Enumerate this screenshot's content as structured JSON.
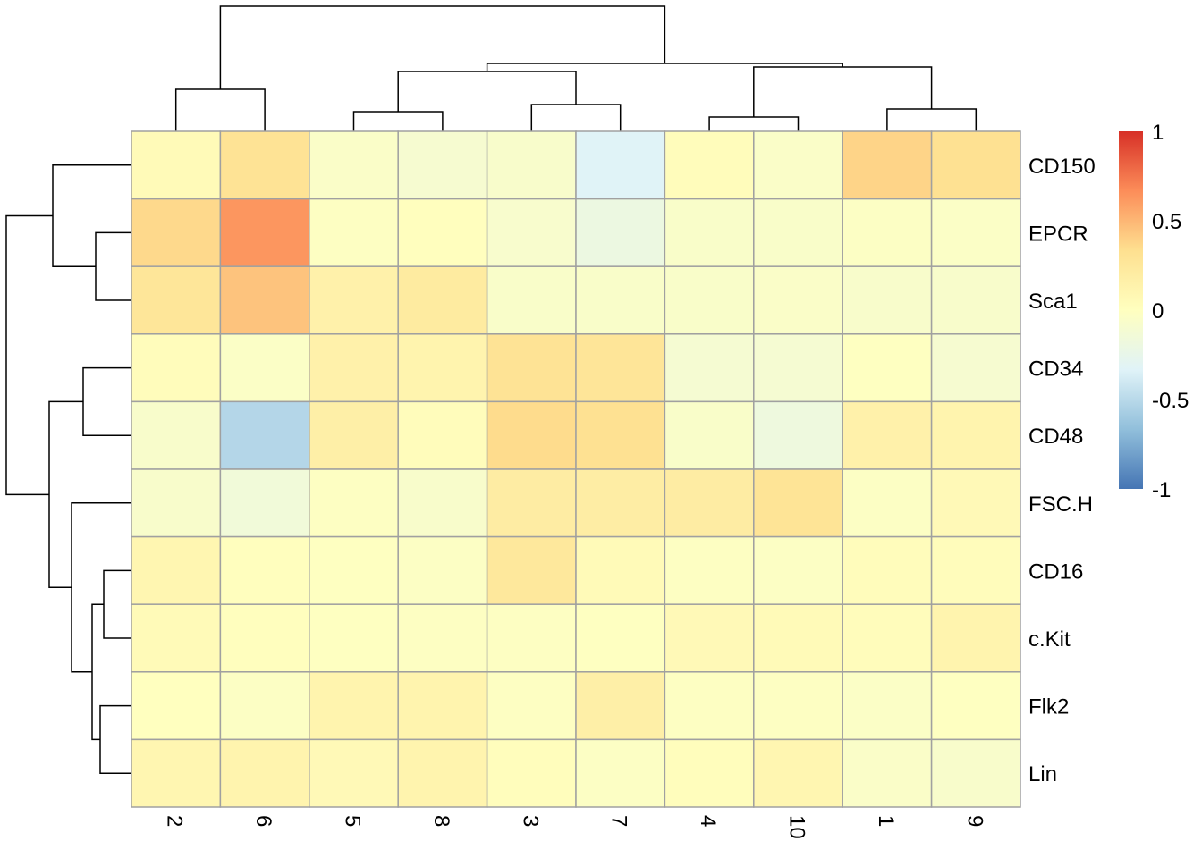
{
  "chart_data": {
    "type": "heatmap",
    "title": "",
    "columns": [
      "2",
      "6",
      "5",
      "8",
      "3",
      "7",
      "4",
      "10",
      "1",
      "9"
    ],
    "rows": [
      "CD150",
      "EPCR",
      "Sca1",
      "CD34",
      "CD48",
      "FSC.H",
      "CD16",
      "c.Kit",
      "Flk2",
      "Lin"
    ],
    "values": [
      [
        0.05,
        0.3,
        -0.05,
        -0.1,
        -0.07,
        -0.33,
        0.03,
        -0.05,
        0.38,
        0.32
      ],
      [
        0.36,
        0.63,
        -0.02,
        0.01,
        -0.08,
        -0.2,
        -0.06,
        -0.06,
        -0.03,
        -0.04
      ],
      [
        0.27,
        0.45,
        0.15,
        0.22,
        -0.06,
        -0.06,
        -0.06,
        -0.05,
        -0.07,
        -0.07
      ],
      [
        0.03,
        -0.04,
        0.15,
        0.12,
        0.3,
        0.28,
        -0.11,
        -0.11,
        -0.01,
        -0.1
      ],
      [
        -0.07,
        -0.52,
        0.17,
        0.03,
        0.35,
        0.32,
        -0.06,
        -0.18,
        0.15,
        0.12
      ],
      [
        -0.07,
        -0.15,
        -0.02,
        -0.07,
        0.2,
        0.19,
        0.2,
        0.29,
        -0.03,
        0.06
      ],
      [
        0.1,
        0.01,
        -0.01,
        -0.03,
        0.25,
        0.05,
        -0.02,
        -0.03,
        0.03,
        0.03
      ],
      [
        0.05,
        0.01,
        -0.01,
        -0.02,
        -0.02,
        -0.01,
        0.06,
        0.05,
        0.03,
        0.12
      ],
      [
        0.0,
        -0.03,
        0.12,
        0.12,
        -0.02,
        0.17,
        -0.02,
        -0.02,
        -0.04,
        -0.01
      ],
      [
        0.1,
        0.12,
        0.06,
        0.12,
        0.02,
        -0.03,
        0.02,
        0.1,
        -0.05,
        -0.07
      ]
    ],
    "color_scale": {
      "range": [
        -1,
        1
      ],
      "colors": [
        "#4575B4",
        "#91BFDB",
        "#E0F3F8",
        "#FFFFBF",
        "#FEE090",
        "#FC8D59",
        "#D73027"
      ],
      "legend_ticks": [
        "1",
        "0.5",
        "0",
        "-0.5",
        "-1"
      ],
      "legend_placement": "right"
    },
    "cell_border_color": "#A0A0A0",
    "row_dendrogram": true,
    "column_dendrogram": true
  }
}
